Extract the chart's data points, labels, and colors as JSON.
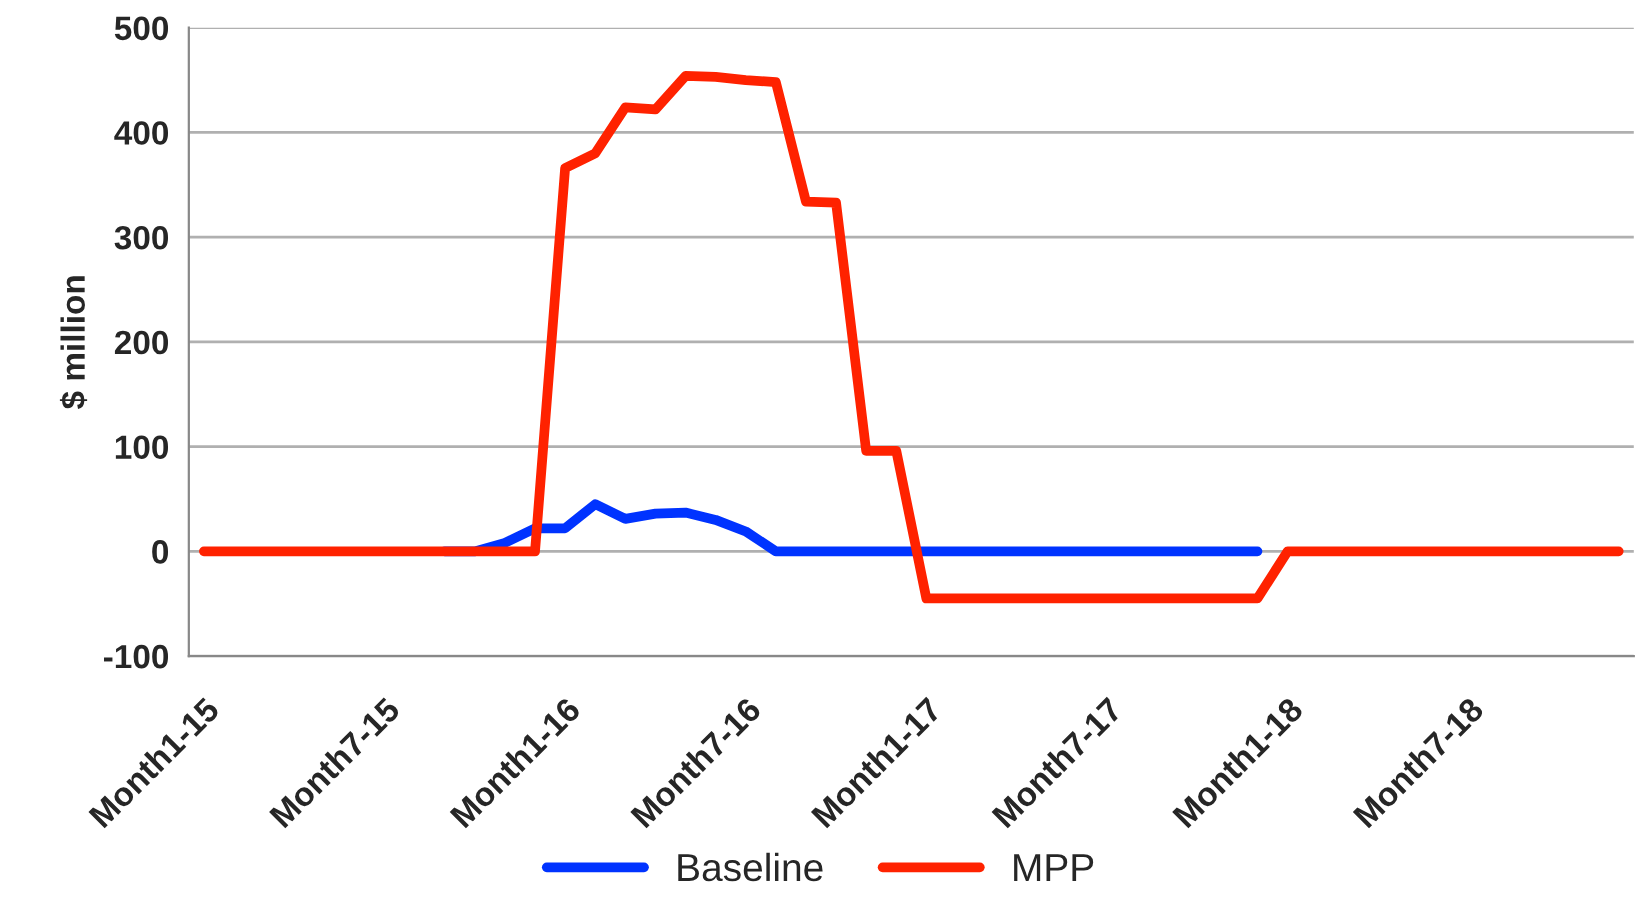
{
  "chart_data": {
    "type": "line",
    "ylabel": "$ million",
    "categories": [
      "Month1-15",
      null,
      null,
      null,
      null,
      null,
      "Month7-15",
      null,
      null,
      null,
      null,
      null,
      "Month1-16",
      null,
      null,
      null,
      null,
      null,
      "Month7-16",
      null,
      null,
      null,
      null,
      null,
      "Month1-17",
      null,
      null,
      null,
      null,
      null,
      "Month7-17",
      null,
      null,
      null,
      null,
      null,
      "Month1-18",
      null,
      null,
      null,
      null,
      null,
      "Month7-18",
      null,
      null,
      null,
      null,
      null
    ],
    "series": [
      {
        "name": "Baseline",
        "color": "#0033ff",
        "values": [
          null,
          null,
          null,
          null,
          null,
          null,
          null,
          null,
          0,
          0,
          8,
          22,
          22,
          45,
          31,
          36,
          37,
          30,
          19,
          0,
          0,
          0,
          0,
          0,
          0,
          0,
          0,
          0,
          0,
          0,
          0,
          0,
          0,
          0,
          0,
          0,
          null,
          null,
          null,
          null,
          null,
          null,
          null,
          null,
          null,
          null,
          null,
          null
        ]
      },
      {
        "name": "MPP",
        "color": "#ff2200",
        "values": [
          0,
          0,
          0,
          0,
          0,
          0,
          0,
          0,
          0,
          0,
          0,
          0,
          366,
          380,
          424,
          422,
          454,
          453,
          450,
          448,
          334,
          333,
          96,
          96,
          -45,
          -45,
          -45,
          -45,
          -45,
          -45,
          -45,
          -45,
          -45,
          -45,
          -45,
          -45,
          0,
          0,
          0,
          0,
          0,
          0,
          0,
          0,
          0,
          0,
          0,
          0
        ]
      }
    ],
    "ylim": [
      -100,
      500
    ],
    "yticks": [
      -100,
      0,
      100,
      200,
      300,
      400,
      500
    ],
    "grid": "y",
    "legend": "bottom",
    "line_style": "solid",
    "marker": "none"
  }
}
